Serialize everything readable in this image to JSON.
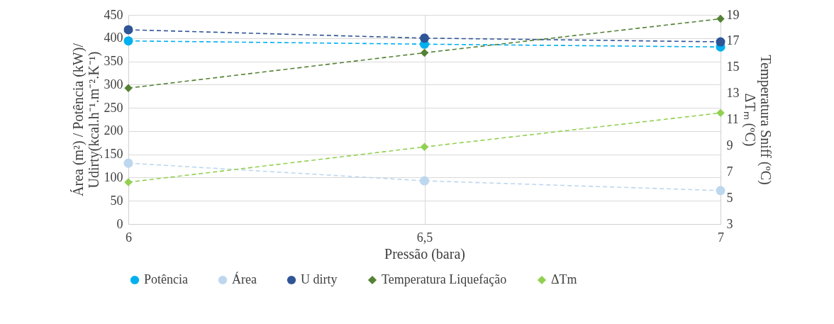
{
  "chart_data": {
    "type": "line",
    "xlabel": "Pressão (bara)",
    "ylabel": [
      "Área (m²) / Potência (kW)/",
      "Udirty(kcal.h⁻¹.m⁻².K⁻¹)"
    ],
    "y2label": [
      "Temperatura Sniff  (ºC)",
      "ΔTₘ (ºC)"
    ],
    "x": [
      6,
      6.5,
      7
    ],
    "xlim": [
      6,
      7
    ],
    "xticks": [
      6,
      {
        "value": 6.5,
        "label": "6,5"
      },
      7
    ],
    "ylim": [
      0,
      450
    ],
    "yticks": [
      0,
      50,
      100,
      150,
      200,
      250,
      300,
      350,
      400,
      450
    ],
    "y2lim": [
      3,
      19
    ],
    "y2ticks": [
      3,
      5,
      7,
      9,
      11,
      13,
      15,
      17,
      19
    ],
    "grid": true,
    "legend": "bottom",
    "line_style": "dashed",
    "series": [
      {
        "name": "Potência",
        "color": "#00b0f0",
        "marker": "circle",
        "values": [
          394,
          387,
          381
        ]
      },
      {
        "name": "Área",
        "color": "#bdd7ee",
        "marker": "circle",
        "values": [
          131,
          93,
          72
        ]
      },
      {
        "name": "U dirty",
        "color": "#2f5597",
        "marker": "circle",
        "values": [
          418,
          400,
          392
        ]
      },
      {
        "name": "Temperatura Liquefação",
        "color": "#548235",
        "marker": "diamond",
        "axis": "y2",
        "values": [
          13.4,
          16.1,
          18.7
        ]
      },
      {
        "name": "ΔTm",
        "color": "#92d050",
        "marker": "diamond",
        "axis": "y2",
        "values": [
          6.2,
          8.9,
          11.5
        ]
      }
    ]
  }
}
